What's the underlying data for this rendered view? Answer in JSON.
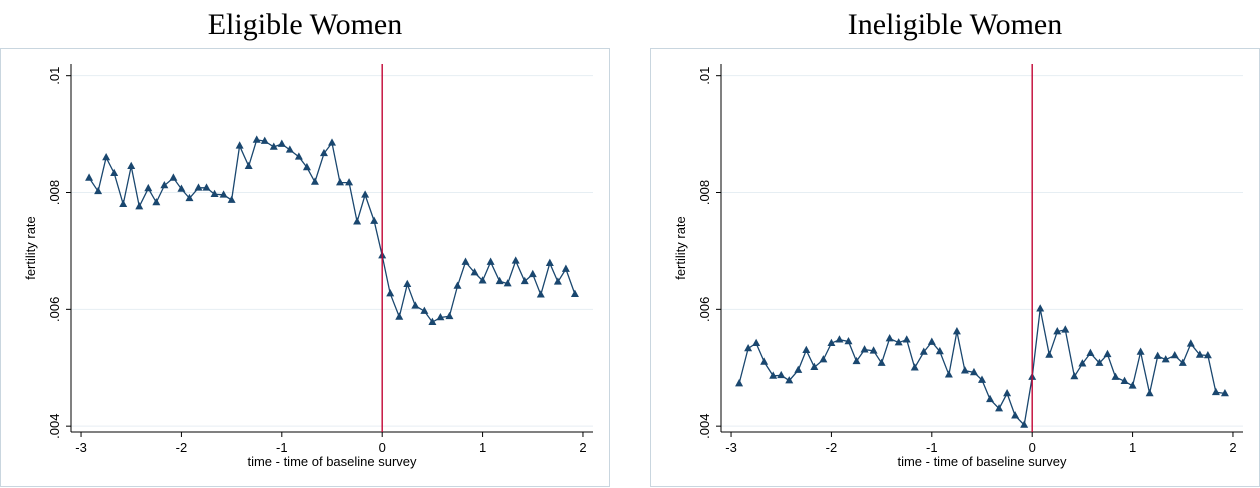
{
  "colors": {
    "line": "#1a476f",
    "marker": "#1a476f",
    "vline": "#c10534",
    "grid": "#e6eef3",
    "frame": "#c9d6df"
  },
  "chart_data": [
    {
      "type": "line",
      "title": "Eligible Women",
      "xlabel": "time - time of baseline survey",
      "ylabel": "fertility rate",
      "xlim": [
        -3.1,
        2.1
      ],
      "ylim": [
        0.0039,
        0.0102
      ],
      "xticks": [
        -3,
        -2,
        -1,
        0,
        1,
        2
      ],
      "xtick_labels": [
        "-3",
        "-2",
        "-1",
        "0",
        "1",
        "2"
      ],
      "yticks": [
        0.004,
        0.006,
        0.008,
        0.01
      ],
      "ytick_labels": [
        ".004",
        ".006",
        ".008",
        ".01"
      ],
      "grid": true,
      "vline": 0,
      "x": [
        -2.92,
        -2.83,
        -2.75,
        -2.67,
        -2.58,
        -2.5,
        -2.42,
        -2.33,
        -2.25,
        -2.17,
        -2.08,
        -2.0,
        -1.92,
        -1.83,
        -1.75,
        -1.67,
        -1.58,
        -1.5,
        -1.42,
        -1.33,
        -1.25,
        -1.17,
        -1.08,
        -1.0,
        -0.92,
        -0.83,
        -0.75,
        -0.67,
        -0.58,
        -0.5,
        -0.42,
        -0.33,
        -0.25,
        -0.17,
        -0.08,
        0.0,
        0.08,
        0.17,
        0.25,
        0.33,
        0.42,
        0.5,
        0.58,
        0.67,
        0.75,
        0.83,
        0.92,
        1.0,
        1.08,
        1.17,
        1.25,
        1.33,
        1.42,
        1.5,
        1.58,
        1.67,
        1.75,
        1.83,
        1.92
      ],
      "series": [
        {
          "values": [
            0.00825,
            0.00802,
            0.0086,
            0.00833,
            0.0078,
            0.00845,
            0.00776,
            0.00807,
            0.00783,
            0.00812,
            0.00825,
            0.00806,
            0.0079,
            0.00808,
            0.00808,
            0.00797,
            0.00796,
            0.00787,
            0.0088,
            0.00845,
            0.0089,
            0.00888,
            0.00878,
            0.00883,
            0.00873,
            0.00861,
            0.00843,
            0.00818,
            0.00867,
            0.00885,
            0.00817,
            0.00817,
            0.0075,
            0.00796,
            0.00751,
            0.00692,
            0.00627,
            0.00587,
            0.00643,
            0.00606,
            0.00597,
            0.00578,
            0.00586,
            0.00588,
            0.0064,
            0.00681,
            0.00663,
            0.00649,
            0.00681,
            0.00648,
            0.00644,
            0.00683,
            0.00648,
            0.0066,
            0.00625,
            0.00679,
            0.00647,
            0.00669,
            0.00626
          ]
        }
      ]
    },
    {
      "type": "line",
      "title": "Ineligible Women",
      "xlabel": "time - time of baseline survey",
      "ylabel": "fertility rate",
      "xlim": [
        -3.1,
        2.1
      ],
      "ylim": [
        0.0039,
        0.0102
      ],
      "xticks": [
        -3,
        -2,
        -1,
        0,
        1,
        2
      ],
      "xtick_labels": [
        "-3",
        "-2",
        "-1",
        "0",
        "1",
        "2"
      ],
      "yticks": [
        0.004,
        0.006,
        0.008,
        0.01
      ],
      "ytick_labels": [
        ".004",
        ".006",
        ".008",
        ".01"
      ],
      "grid": true,
      "vline": 0,
      "x": [
        -2.92,
        -2.83,
        -2.75,
        -2.67,
        -2.58,
        -2.5,
        -2.42,
        -2.33,
        -2.25,
        -2.17,
        -2.08,
        -2.0,
        -1.92,
        -1.83,
        -1.75,
        -1.67,
        -1.58,
        -1.5,
        -1.42,
        -1.33,
        -1.25,
        -1.17,
        -1.08,
        -1.0,
        -0.92,
        -0.83,
        -0.75,
        -0.67,
        -0.58,
        -0.5,
        -0.42,
        -0.33,
        -0.25,
        -0.17,
        -0.08,
        0.0,
        0.08,
        0.17,
        0.25,
        0.33,
        0.42,
        0.5,
        0.58,
        0.67,
        0.75,
        0.83,
        0.92,
        1.0,
        1.08,
        1.17,
        1.25,
        1.33,
        1.42,
        1.5,
        1.58,
        1.67,
        1.75,
        1.83,
        1.92
      ],
      "series": [
        {
          "values": [
            0.00473,
            0.00533,
            0.00542,
            0.0051,
            0.00486,
            0.00487,
            0.00478,
            0.00496,
            0.0053,
            0.00501,
            0.00514,
            0.00542,
            0.00548,
            0.00545,
            0.00511,
            0.00531,
            0.00529,
            0.00508,
            0.0055,
            0.00543,
            0.00548,
            0.005,
            0.00527,
            0.00544,
            0.00528,
            0.00488,
            0.00562,
            0.00495,
            0.00492,
            0.00479,
            0.00446,
            0.0043,
            0.00456,
            0.00418,
            0.00402,
            0.00484,
            0.00601,
            0.00522,
            0.00562,
            0.00565,
            0.00485,
            0.00507,
            0.00525,
            0.00508,
            0.00523,
            0.00484,
            0.00477,
            0.00469,
            0.00527,
            0.00456,
            0.0052,
            0.00514,
            0.00521,
            0.00508,
            0.00541,
            0.00522,
            0.00521,
            0.00458,
            0.00456
          ]
        }
      ]
    }
  ]
}
